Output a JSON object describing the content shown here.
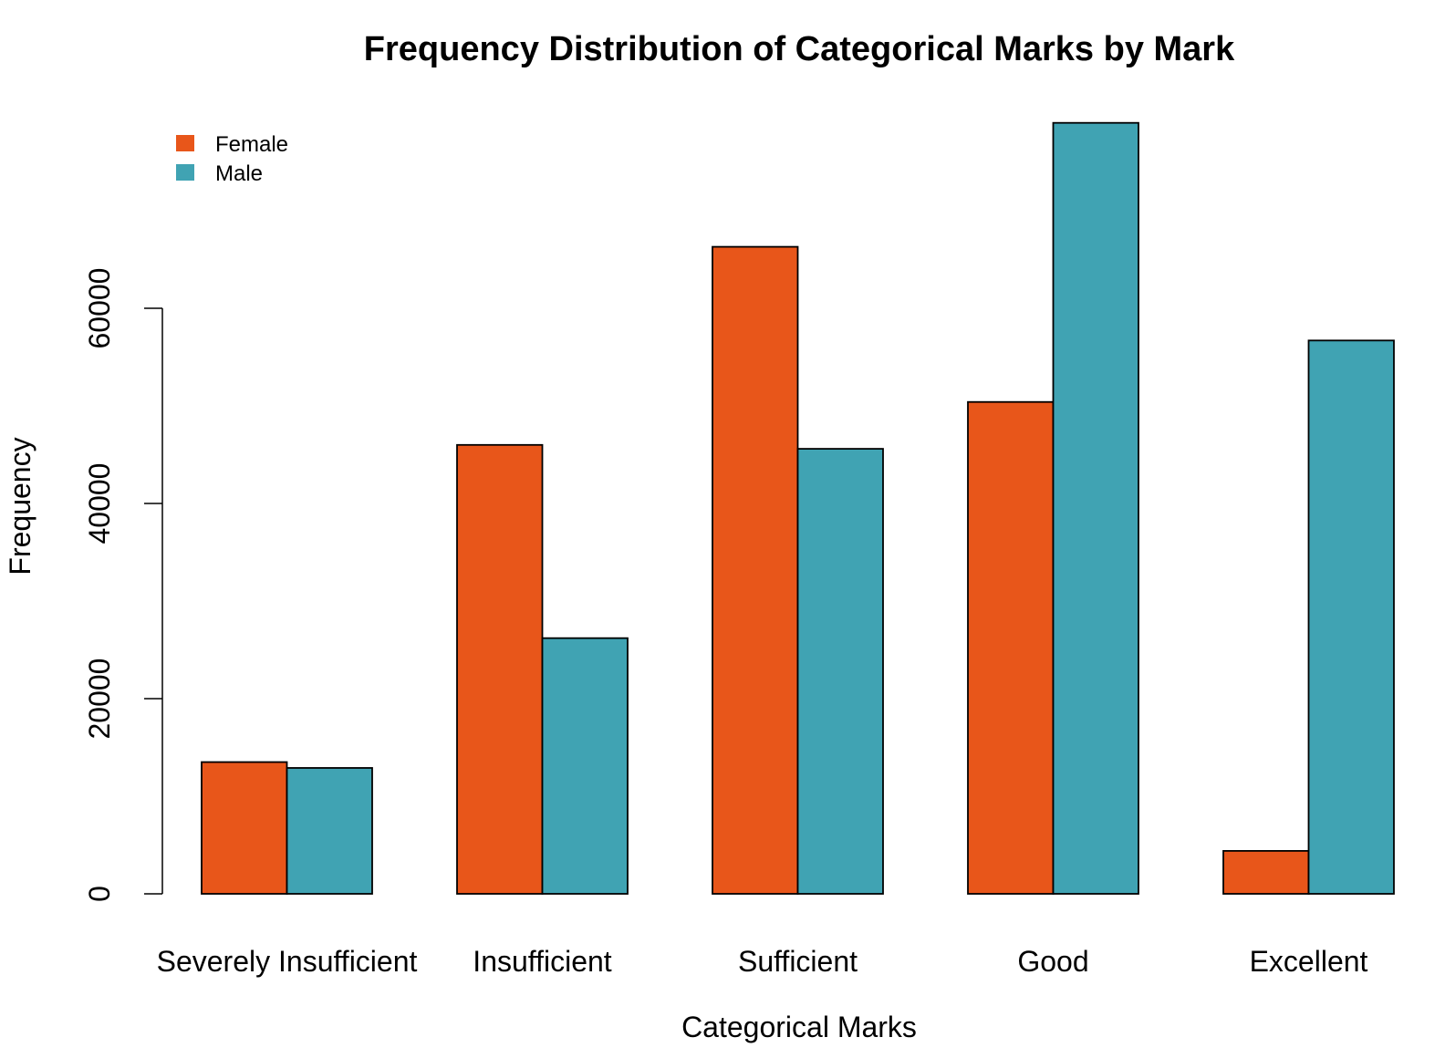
{
  "chart_data": {
    "type": "bar",
    "title": "Frequency Distribution of Categorical Marks by Mark",
    "xlabel": "Categorical Marks",
    "ylabel": "Frequency",
    "categories": [
      "Severely Insufficient",
      "Insufficient",
      "Sufficient",
      "Good",
      "Excellent"
    ],
    "series": [
      {
        "name": "Female",
        "color": "#E8561A",
        "values": [
          13500,
          46000,
          66300,
          50400,
          4400
        ]
      },
      {
        "name": "Male",
        "color": "#40A3B3",
        "values": [
          12900,
          26200,
          45600,
          79000,
          56700
        ]
      }
    ],
    "ylim": [
      0,
      80000
    ],
    "yticks": [
      0,
      20000,
      40000,
      60000
    ],
    "ytick_labels": [
      "0",
      "20000",
      "40000",
      "60000"
    ],
    "grid": false,
    "legend_position": "top-left"
  }
}
